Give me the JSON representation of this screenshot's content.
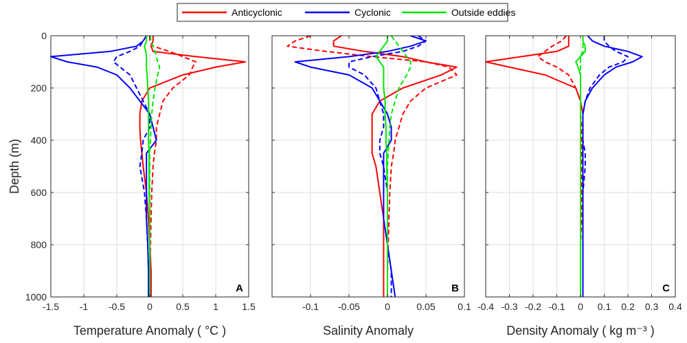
{
  "chart_data": {
    "type": "line",
    "legend": {
      "placement": "top",
      "entries": [
        {
          "name": "Anticyclonic",
          "color": "#ff0000"
        },
        {
          "name": "Cyclonic",
          "color": "#0000ff"
        },
        {
          "name": "Outside eddies",
          "color": "#00e600"
        }
      ]
    },
    "ylabel": "Depth (m)",
    "ylim": [
      0,
      1000
    ],
    "yticks": [
      0,
      200,
      400,
      600,
      800,
      1000
    ],
    "y_reversed": true,
    "grid": true,
    "depth": [
      0,
      20,
      40,
      60,
      80,
      100,
      120,
      150,
      200,
      250,
      300,
      350,
      400,
      450,
      500,
      600,
      700,
      800,
      900,
      1000
    ],
    "panels": [
      {
        "letter": "A",
        "xlabel": "Temperature Anomaly ( °C )",
        "xlim": [
          -1.5,
          1.5
        ],
        "xticks": [
          -1.5,
          -1,
          -0.5,
          0,
          0.5,
          1,
          1.5
        ],
        "xtick_labels": [
          "-1.5",
          "-1",
          "-0.5",
          "0",
          "0.5",
          "1",
          "1.5"
        ],
        "series": [
          {
            "name": "Anticyclonic",
            "style": "solid",
            "values": [
              0.05,
              0.05,
              0.02,
              0.05,
              0.7,
              1.45,
              1.0,
              0.5,
              0.0,
              -0.12,
              -0.15,
              -0.15,
              -0.14,
              -0.12,
              -0.1,
              -0.05,
              -0.02,
              0.0,
              0.02,
              0.02
            ]
          },
          {
            "name": "Anticyclonic",
            "style": "dashed",
            "values": [
              0.0,
              0.0,
              0.05,
              0.3,
              0.5,
              0.7,
              0.65,
              0.6,
              0.35,
              0.2,
              0.15,
              0.1,
              0.1,
              0.07,
              0.05,
              0.03,
              0.02,
              0.01,
              0.0,
              0.0
            ]
          },
          {
            "name": "Cyclonic",
            "style": "solid",
            "values": [
              -0.05,
              -0.1,
              -0.2,
              -0.6,
              -1.5,
              -1.25,
              -0.8,
              -0.5,
              -0.3,
              -0.15,
              0.0,
              0.05,
              0.1,
              -0.05,
              -0.05,
              -0.05,
              -0.05,
              -0.03,
              -0.02,
              -0.02
            ]
          },
          {
            "name": "Cyclonic",
            "style": "dashed",
            "values": [
              -0.05,
              -0.1,
              -0.15,
              -0.3,
              -0.5,
              -0.55,
              -0.45,
              -0.3,
              -0.2,
              -0.1,
              0.0,
              0.0,
              -0.1,
              -0.12,
              -0.15,
              -0.08,
              -0.05,
              -0.03,
              -0.02,
              -0.02
            ]
          },
          {
            "name": "Outside eddies",
            "style": "solid",
            "values": [
              -0.05,
              -0.05,
              -0.08,
              -0.06,
              -0.05,
              -0.05,
              -0.05,
              -0.04,
              -0.03,
              -0.02,
              -0.02,
              -0.02,
              -0.02,
              -0.01,
              -0.01,
              -0.01,
              0.0,
              0.0,
              0.0,
              0.0
            ]
          },
          {
            "name": "Outside eddies",
            "style": "dashed",
            "values": [
              0.0,
              0.02,
              0.05,
              0.08,
              0.1,
              0.12,
              0.15,
              0.12,
              0.08,
              0.05,
              0.03,
              0.02,
              0.01,
              0.0,
              0.0,
              0.0,
              0.0,
              0.0,
              0.0,
              0.0
            ]
          }
        ]
      },
      {
        "letter": "B",
        "xlabel": "Salinity Anomaly",
        "xlim": [
          -0.15,
          0.1
        ],
        "xticks": [
          -0.1,
          -0.05,
          0,
          0.05,
          0.1
        ],
        "xtick_labels": [
          "-0.1",
          "-0.05",
          "0",
          "0.05",
          "0.1"
        ],
        "series": [
          {
            "name": "Anticyclonic",
            "style": "solid",
            "values": [
              -0.06,
              -0.07,
              -0.07,
              -0.03,
              0.02,
              0.05,
              0.09,
              0.07,
              0.02,
              -0.01,
              -0.02,
              -0.02,
              -0.02,
              -0.02,
              -0.015,
              -0.01,
              -0.005,
              -0.005,
              -0.005,
              -0.005
            ]
          },
          {
            "name": "Anticyclonic",
            "style": "dashed",
            "values": [
              -0.1,
              -0.12,
              -0.13,
              -0.08,
              -0.02,
              0.05,
              0.08,
              0.09,
              0.05,
              0.03,
              0.02,
              0.015,
              0.01,
              0.008,
              0.005,
              0.003,
              0.002,
              0.001,
              0.0,
              0.0
            ]
          },
          {
            "name": "Cyclonic",
            "style": "solid",
            "values": [
              0.03,
              0.05,
              0.03,
              0.0,
              -0.05,
              -0.12,
              -0.1,
              -0.05,
              -0.02,
              -0.01,
              0.0,
              0.005,
              0.005,
              -0.005,
              -0.005,
              -0.005,
              -0.005,
              0.0,
              0.005,
              0.01
            ]
          },
          {
            "name": "Cyclonic",
            "style": "dashed",
            "values": [
              0.04,
              0.05,
              0.04,
              0.02,
              -0.02,
              -0.05,
              -0.05,
              -0.03,
              -0.015,
              -0.01,
              -0.005,
              -0.005,
              -0.01,
              -0.01,
              -0.005,
              0.0,
              0.0,
              0.0,
              0.005,
              0.005
            ]
          },
          {
            "name": "Outside eddies",
            "style": "solid",
            "values": [
              0.0,
              0.0,
              -0.005,
              -0.01,
              -0.015,
              -0.01,
              -0.005,
              -0.005,
              -0.005,
              -0.003,
              -0.003,
              -0.002,
              -0.002,
              -0.001,
              -0.001,
              0.0,
              0.0,
              0.0,
              0.0,
              0.0
            ]
          },
          {
            "name": "Outside eddies",
            "style": "dashed",
            "values": [
              0.005,
              0.01,
              0.015,
              0.02,
              0.025,
              0.03,
              0.03,
              0.025,
              0.015,
              0.01,
              0.005,
              0.003,
              0.002,
              0.001,
              0.0,
              0.0,
              0.0,
              0.0,
              0.0,
              0.0
            ]
          }
        ]
      },
      {
        "letter": "C",
        "xlabel": "Density Anomaly ( kg m⁻³ )",
        "xlim": [
          -0.4,
          0.4
        ],
        "xticks": [
          -0.4,
          -0.3,
          -0.2,
          -0.1,
          0,
          0.1,
          0.2,
          0.3,
          0.4
        ],
        "xtick_labels": [
          "-0.4",
          "-0.3",
          "-0.2",
          "-0.1",
          "0",
          "0.1",
          "0.2",
          "0.3",
          "0.4"
        ],
        "series": [
          {
            "name": "Anticyclonic",
            "style": "solid",
            "values": [
              -0.05,
              -0.05,
              -0.05,
              -0.1,
              -0.25,
              -0.4,
              -0.3,
              -0.15,
              -0.02,
              0.0,
              0.01,
              0.01,
              0.01,
              0.01,
              0.01,
              0.01,
              0.01,
              0.01,
              0.01,
              0.01
            ]
          },
          {
            "name": "Anticyclonic",
            "style": "dashed",
            "values": [
              -0.06,
              -0.08,
              -0.12,
              -0.15,
              -0.18,
              -0.15,
              -0.1,
              -0.05,
              -0.02,
              0.0,
              0.0,
              0.005,
              0.005,
              0.005,
              0.005,
              0.005,
              0.005,
              0.0,
              0.0,
              0.0
            ]
          },
          {
            "name": "Cyclonic",
            "style": "solid",
            "values": [
              0.03,
              0.05,
              0.1,
              0.2,
              0.26,
              0.22,
              0.15,
              0.1,
              0.05,
              0.02,
              0.01,
              0.01,
              0.01,
              0.01,
              0.01,
              0.01,
              0.01,
              0.01,
              0.01,
              0.01
            ]
          },
          {
            "name": "Cyclonic",
            "style": "dashed",
            "values": [
              0.1,
              0.1,
              0.12,
              0.15,
              0.2,
              0.18,
              0.12,
              0.08,
              0.04,
              0.02,
              0.01,
              0.01,
              0.01,
              0.02,
              0.02,
              0.01,
              0.01,
              0.01,
              0.01,
              0.01
            ]
          },
          {
            "name": "Outside eddies",
            "style": "solid",
            "values": [
              0.01,
              0.01,
              0.02,
              0.02,
              0.0,
              -0.02,
              -0.01,
              0.0,
              0.0,
              0.0,
              0.0,
              0.0,
              0.0,
              0.0,
              0.0,
              0.0,
              0.0,
              0.0,
              0.0,
              0.0
            ]
          },
          {
            "name": "Outside eddies",
            "style": "dashed",
            "values": [
              0.01,
              0.01,
              0.01,
              0.01,
              0.0,
              0.0,
              0.0,
              0.0,
              0.0,
              0.0,
              0.0,
              0.0,
              0.0,
              0.0,
              0.0,
              0.0,
              0.0,
              0.0,
              0.0,
              0.0
            ]
          }
        ]
      }
    ]
  }
}
